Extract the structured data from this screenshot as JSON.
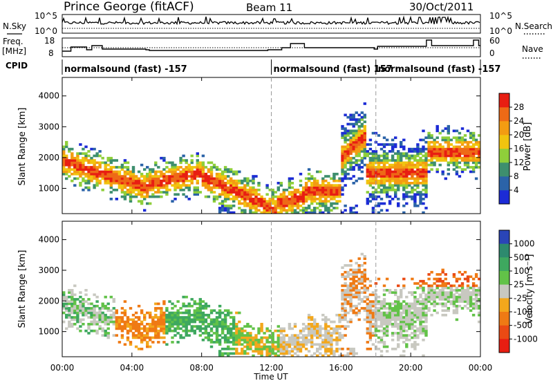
{
  "header": {
    "station": "Prince George (fitACF)",
    "beam": "Beam 11",
    "date": "30/Oct/2011"
  },
  "noise_panel": {
    "left_label": "N.Sky",
    "right_label": "N.Search",
    "left_ticks": [
      "10^5",
      "10^0"
    ],
    "right_ticks": [
      "10^5",
      "10^0"
    ]
  },
  "freq_panel": {
    "left_label_1": "Freq.",
    "left_label_2": "[MHz]",
    "right_label": "Nave",
    "left_ticks": [
      "18",
      "8"
    ],
    "right_ticks": [
      "60",
      "0"
    ]
  },
  "cpid": {
    "label": "CPID",
    "segments": [
      {
        "start": 0,
        "end": 12,
        "text": "normalsound (fast) -157"
      },
      {
        "start": 12,
        "end": 18,
        "text": "normalsound (fast) 157"
      },
      {
        "start": 18,
        "end": 24,
        "text": "normalsound (fast) -157"
      }
    ]
  },
  "chart_data": [
    {
      "type": "heatmap",
      "quantity": "Power",
      "ylabel": "Slant Range [km]",
      "xlim": [
        0,
        24
      ],
      "ylim": [
        180,
        4600
      ],
      "yticks": [
        {
          "value": 1000,
          "label": "1000"
        },
        {
          "value": 2000,
          "label": "2000"
        },
        {
          "value": 3000,
          "label": "3000"
        },
        {
          "value": 4000,
          "label": "4000"
        }
      ],
      "colorbar": {
        "title": "Power [dB]",
        "labels": [
          "4",
          "8",
          "12",
          "16",
          "20",
          "24",
          "28"
        ],
        "colors": [
          "#1c2bd6",
          "#2b63a8",
          "#3e8f6e",
          "#8fcf3a",
          "#f1c40f",
          "#f39c12",
          "#ee6a16",
          "#e81e12"
        ]
      }
    },
    {
      "type": "heatmap",
      "quantity": "Velocity",
      "ylabel": "Slant Range [km]",
      "xlabel": "Time UT",
      "xlim": [
        0,
        24
      ],
      "ylim": [
        180,
        4600
      ],
      "yticks": [
        {
          "value": 1000,
          "label": "1000"
        },
        {
          "value": 2000,
          "label": "2000"
        },
        {
          "value": 3000,
          "label": "3000"
        },
        {
          "value": 4000,
          "label": "4000"
        }
      ],
      "xticks": [
        {
          "value": 0,
          "label": "00:00"
        },
        {
          "value": 4,
          "label": "04:00"
        },
        {
          "value": 8,
          "label": "08:00"
        },
        {
          "value": 12,
          "label": "12:00"
        },
        {
          "value": 16,
          "label": "16:00"
        },
        {
          "value": 20,
          "label": "20:00"
        },
        {
          "value": 24,
          "label": "00:00"
        }
      ],
      "colorbar": {
        "title": "Velocity [m s⁻¹]",
        "labels": [
          "1000",
          "500",
          "100",
          "25",
          "-25",
          "-100",
          "-500",
          "-1000"
        ],
        "colors": [
          "#2a45b8",
          "#2d8a6e",
          "#3ea85f",
          "#62c248",
          "#c8c8c0",
          "#f3a71c",
          "#ef7a14",
          "#ea4a14",
          "#e81e12"
        ]
      }
    }
  ]
}
